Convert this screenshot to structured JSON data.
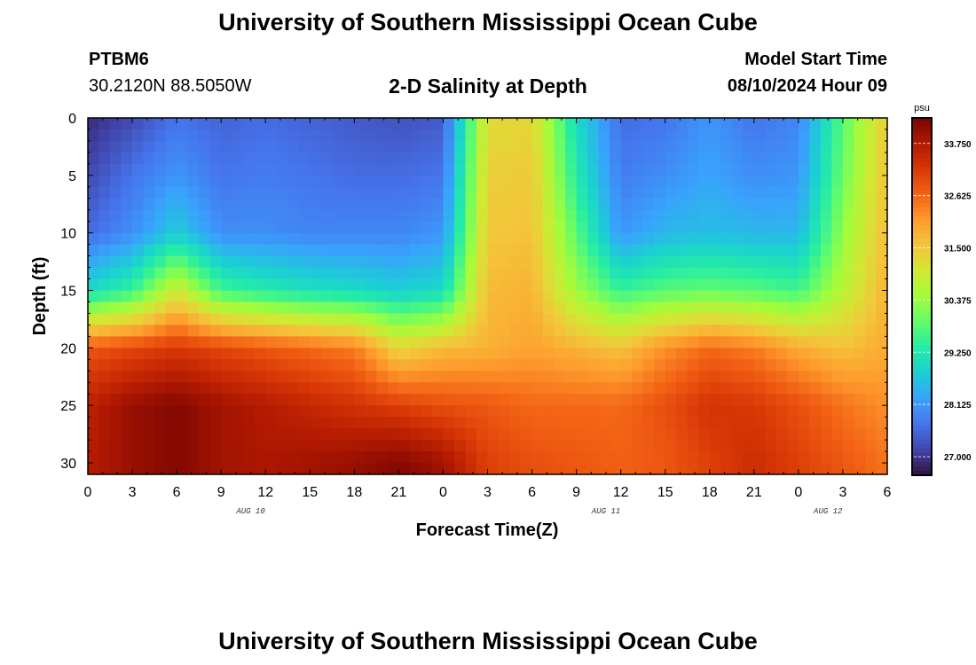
{
  "header": {
    "title": "University of Southern Mississippi Ocean Cube",
    "station": "PTBM6",
    "coords": "30.2120N  88.5050W",
    "subtitle": "2-D Salinity at Depth",
    "model_start_label": "Model Start Time",
    "model_start_value": "08/10/2024 Hour 09"
  },
  "footer": {
    "title": "University of Southern Mississippi Ocean Cube"
  },
  "colors": {
    "colormap": [
      "#30123b",
      "#4145ab",
      "#4675ed",
      "#39a2fc",
      "#1bcfd4",
      "#24eca6",
      "#61fc6c",
      "#a4fc3b",
      "#d1e834",
      "#f3c63a",
      "#fe9b2d",
      "#f36315",
      "#d93806",
      "#b11901",
      "#7a0402"
    ]
  },
  "chart_data": {
    "type": "heatmap",
    "title": "2-D Salinity at Depth",
    "xlabel": "Forecast Time(Z)",
    "ylabel": "Depth (ft)",
    "x_hours_since_aug10_00": [
      0,
      3,
      6,
      9,
      12,
      15,
      18,
      21,
      24,
      27,
      30,
      33,
      36,
      39,
      42,
      45,
      48,
      51,
      54
    ],
    "x_tick_labels": [
      "0",
      "3",
      "6",
      "9",
      "12",
      "15",
      "18",
      "21",
      "0",
      "3",
      "6",
      "9",
      "12",
      "15",
      "18",
      "21",
      "0",
      "3",
      "6"
    ],
    "date_labels": [
      {
        "label": "AUG 10",
        "hour": 11
      },
      {
        "label": "AUG 11",
        "hour": 35
      },
      {
        "label": "AUG 12",
        "hour": 50
      }
    ],
    "xlim": [
      0,
      54
    ],
    "ylim": [
      0,
      31
    ],
    "y_inverted": true,
    "y_ticks": [
      0,
      5,
      10,
      15,
      20,
      25,
      30
    ],
    "depths_ft": [
      0,
      5,
      10,
      15,
      20,
      25,
      30
    ],
    "salinity_psu": [
      [
        26.9,
        27.2,
        27.7,
        27.5,
        27.6,
        27.5,
        27.4,
        27.3,
        27.4,
        31.2,
        31.3,
        29.0,
        27.6,
        27.7,
        28.1,
        27.7,
        27.9,
        29.8,
        31.5
      ],
      [
        27.2,
        27.7,
        28.1,
        27.7,
        27.8,
        27.7,
        27.6,
        27.6,
        27.7,
        31.4,
        31.5,
        29.3,
        27.8,
        28.0,
        28.3,
        28.0,
        28.1,
        30.0,
        31.6
      ],
      [
        27.6,
        28.0,
        28.8,
        28.0,
        28.0,
        27.9,
        27.9,
        27.9,
        28.1,
        31.5,
        31.6,
        29.8,
        28.1,
        28.5,
        28.6,
        28.5,
        28.5,
        30.3,
        31.7
      ],
      [
        29.0,
        29.5,
        31.0,
        29.6,
        29.3,
        29.1,
        29.0,
        28.8,
        29.0,
        31.7,
        31.8,
        30.4,
        29.5,
        29.8,
        29.9,
        29.8,
        29.6,
        30.7,
        31.8
      ],
      [
        32.8,
        33.0,
        33.2,
        33.0,
        32.8,
        32.6,
        32.4,
        31.3,
        31.7,
        31.8,
        32.0,
        31.8,
        31.6,
        32.2,
        32.6,
        32.4,
        31.9,
        31.6,
        31.9
      ],
      [
        33.6,
        34.0,
        34.2,
        33.9,
        33.7,
        33.5,
        33.3,
        33.1,
        32.9,
        32.8,
        32.6,
        32.6,
        32.6,
        32.9,
        33.3,
        33.2,
        32.9,
        32.5,
        32.2
      ],
      [
        33.7,
        34.0,
        34.2,
        33.9,
        33.8,
        33.9,
        34.0,
        34.2,
        33.9,
        33.1,
        32.9,
        32.8,
        32.7,
        32.8,
        33.1,
        33.4,
        33.1,
        32.8,
        32.5
      ]
    ],
    "colorbar": {
      "unit": "psu",
      "tick_labels": [
        "33.750",
        "32.625",
        "31.500",
        "30.375",
        "29.250",
        "28.125",
        "27.000"
      ],
      "tick_values": [
        33.75,
        32.625,
        31.5,
        30.375,
        29.25,
        28.125,
        27.0
      ],
      "range": [
        26.6,
        34.3
      ]
    }
  }
}
